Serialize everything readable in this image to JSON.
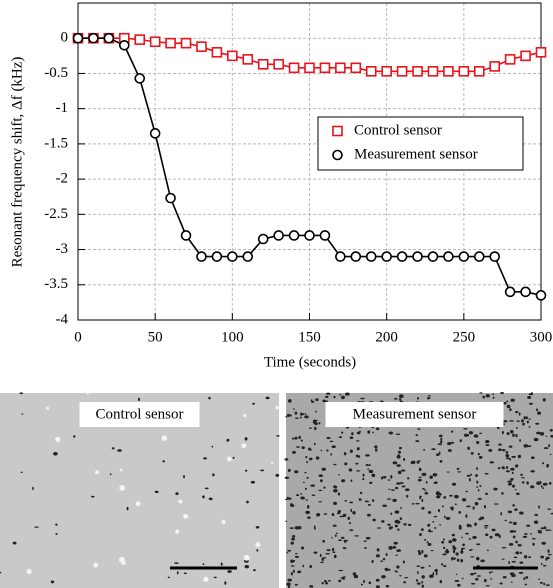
{
  "chart_data": {
    "type": "line",
    "xlabel": "Time (seconds)",
    "ylabel": "Resonant frequency shift, Δf (kHz)",
    "x": [
      0,
      10,
      20,
      30,
      40,
      50,
      60,
      70,
      80,
      90,
      100,
      110,
      120,
      130,
      140,
      150,
      160,
      170,
      180,
      190,
      200,
      210,
      220,
      230,
      240,
      250,
      260,
      270,
      280,
      290,
      300
    ],
    "series": [
      {
        "name": "Control sensor",
        "color": "#e8141c",
        "marker": "square",
        "values": [
          0,
          0,
          0,
          0,
          -0.02,
          -0.05,
          -0.07,
          -0.07,
          -0.12,
          -0.2,
          -0.25,
          -0.3,
          -0.37,
          -0.37,
          -0.42,
          -0.42,
          -0.42,
          -0.42,
          -0.42,
          -0.47,
          -0.47,
          -0.47,
          -0.47,
          -0.47,
          -0.47,
          -0.47,
          -0.47,
          -0.4,
          -0.3,
          -0.25,
          -0.2
        ]
      },
      {
        "name": "Measurement sensor",
        "color": "#000000",
        "marker": "circle",
        "values": [
          0,
          0,
          0,
          -0.1,
          -0.57,
          -1.35,
          -2.27,
          -2.8,
          -3.1,
          -3.1,
          -3.1,
          -3.1,
          -2.85,
          -2.8,
          -2.8,
          -2.8,
          -2.8,
          -3.1,
          -3.1,
          -3.1,
          -3.1,
          -3.1,
          -3.1,
          -3.1,
          -3.1,
          -3.1,
          -3.1,
          -3.1,
          -3.6,
          -3.6,
          -3.65
        ]
      }
    ],
    "xlim": [
      0,
      300
    ],
    "xticks": [
      0,
      50,
      100,
      150,
      200,
      250,
      300
    ],
    "ylim": [
      -4,
      0.5
    ],
    "yticks": [
      0,
      -0.5,
      -1,
      -1.5,
      -2,
      -2.5,
      -3,
      -3.5,
      -4
    ],
    "grid": true,
    "legend": "right"
  },
  "panels": [
    {
      "label": "Control sensor",
      "color": "#e8141c"
    },
    {
      "label": "Measurement sensor",
      "color": "#000000"
    }
  ]
}
